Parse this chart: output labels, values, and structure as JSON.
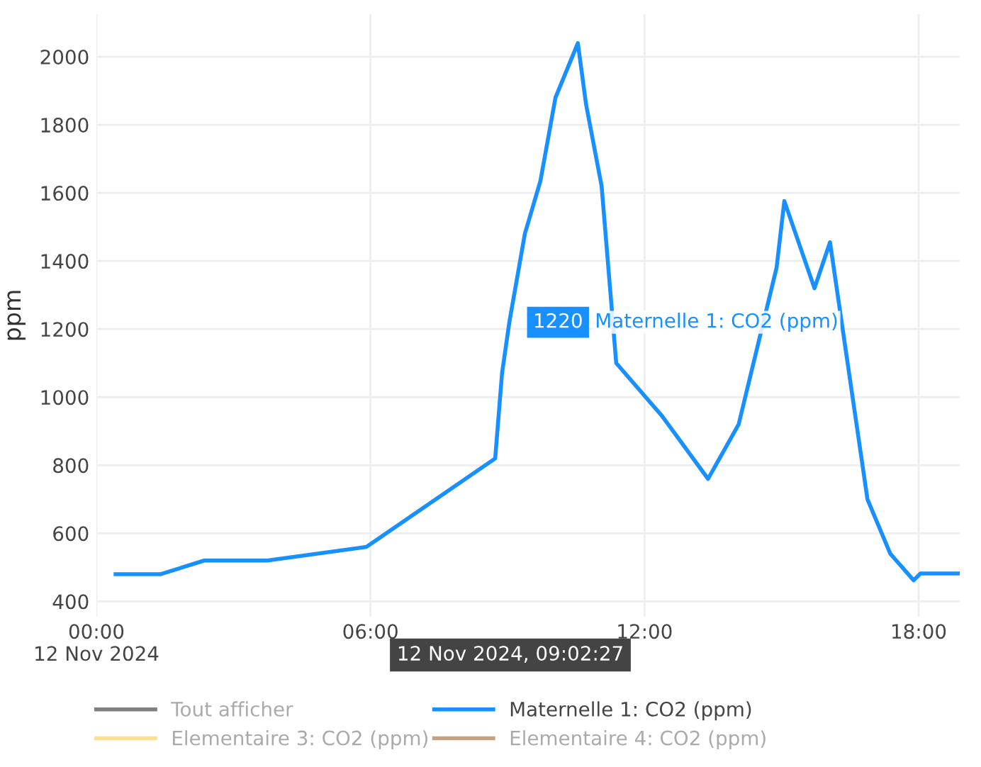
{
  "chart_data": {
    "type": "line",
    "ylabel": "ppm",
    "xlim": [
      0,
      18.9
    ],
    "ylim": [
      355,
      2125
    ],
    "xticks": [
      {
        "value": 0,
        "label": "00:00\n12 Nov 2024"
      },
      {
        "value": 6,
        "label": "06:00"
      },
      {
        "value": 12,
        "label": "12:00"
      },
      {
        "value": 18,
        "label": "18:00"
      }
    ],
    "yticks": [
      400,
      600,
      800,
      1000,
      1200,
      1400,
      1600,
      1800,
      2000
    ],
    "grid": true,
    "legend": "bottom",
    "marker": "none",
    "line_style": "solid",
    "series": [
      {
        "name": "Tout afficher",
        "color": "#7f7f7f"
      },
      {
        "name": "Maternelle 1: CO2 (ppm)",
        "color": "#1890ff",
        "x": [
          0.42,
          1.41,
          2.36,
          3.74,
          5.91,
          8.73,
          8.88,
          9.04,
          9.38,
          9.72,
          10.05,
          10.54,
          10.72,
          11.06,
          11.38,
          12.38,
          13.39,
          14.06,
          14.89,
          15.06,
          15.72,
          16.06,
          16.88,
          17.38,
          17.89,
          18.04,
          18.9
        ],
        "values": [
          480,
          480,
          520,
          520,
          560,
          820,
          1070,
          1220,
          1480,
          1635,
          1880,
          2040,
          1860,
          1620,
          1100,
          945,
          760,
          920,
          1380,
          1576,
          1320,
          1455,
          700,
          540,
          462,
          482,
          482
        ]
      },
      {
        "name": "Elementaire 3: CO2 (ppm)",
        "color": "#ffe08a"
      },
      {
        "name": "Elementaire 4: CO2 (ppm)",
        "color": "#c4a27f"
      }
    ],
    "annotations": [
      {
        "text": "1220",
        "x": 9.04,
        "y": 1220
      },
      "Maternelle 1: CO2 (ppm)",
      "12 Nov 2024, 09:02:27"
    ]
  }
}
